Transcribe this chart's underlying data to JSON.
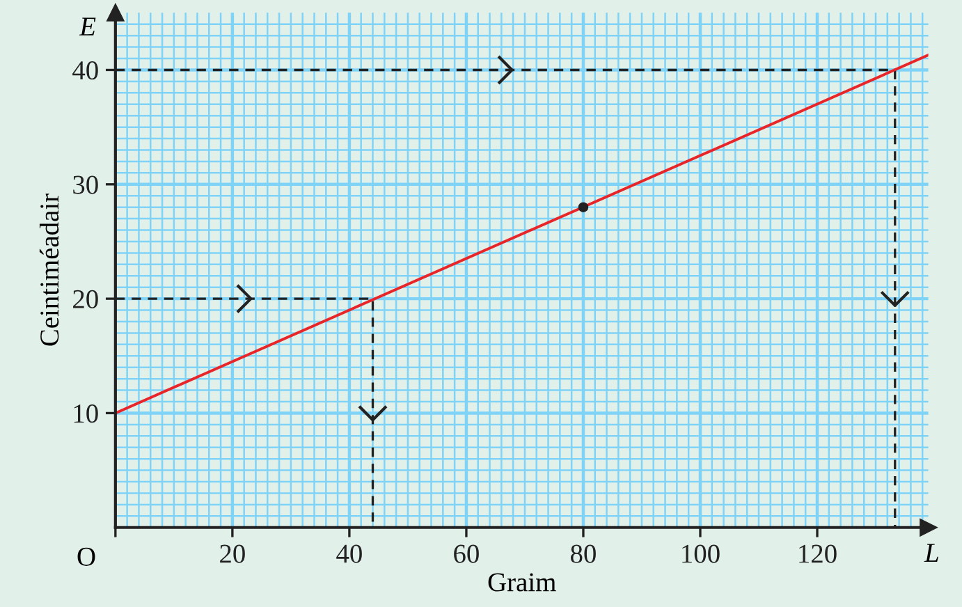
{
  "chart_data": {
    "type": "line",
    "xlabel": "Graim",
    "ylabel": "Ceintiméadair",
    "annotations": [
      "E",
      "O",
      "L"
    ],
    "xlim": [
      0,
      139
    ],
    "ylim": [
      0,
      45
    ],
    "xticks": [
      {
        "value": 0,
        "label": null
      },
      {
        "value": 2,
        "label": null
      },
      {
        "value": 4,
        "label": null
      },
      {
        "value": 6,
        "label": null
      },
      {
        "value": 8,
        "label": null
      },
      {
        "value": 10,
        "label": null
      },
      {
        "value": 12,
        "label": null
      },
      {
        "value": 14,
        "label": null
      },
      {
        "value": 16,
        "label": null
      },
      {
        "value": 18,
        "label": null
      },
      20,
      {
        "value": 22,
        "label": null
      },
      {
        "value": 24,
        "label": null
      },
      {
        "value": 26,
        "label": null
      },
      {
        "value": 28,
        "label": null
      },
      {
        "value": 30,
        "label": null
      },
      {
        "value": 32,
        "label": null
      },
      {
        "value": 34,
        "label": null
      },
      {
        "value": 36,
        "label": null
      },
      {
        "value": 38,
        "label": null
      },
      40,
      {
        "value": 42,
        "label": null
      },
      {
        "value": 44,
        "label": null
      },
      {
        "value": 46,
        "label": null
      },
      {
        "value": 48,
        "label": null
      },
      {
        "value": 50,
        "label": null
      },
      {
        "value": 52,
        "label": null
      },
      {
        "value": 54,
        "label": null
      },
      {
        "value": 56,
        "label": null
      },
      {
        "value": 58,
        "label": null
      },
      60,
      {
        "value": 62,
        "label": null
      },
      {
        "value": 64,
        "label": null
      },
      {
        "value": 66,
        "label": null
      },
      {
        "value": 68,
        "label": null
      },
      {
        "value": 70,
        "label": null
      },
      {
        "value": 72,
        "label": null
      },
      {
        "value": 74,
        "label": null
      },
      {
        "value": 76,
        "label": null
      },
      {
        "value": 78,
        "label": null
      },
      80,
      {
        "value": 82,
        "label": null
      },
      {
        "value": 84,
        "label": null
      },
      {
        "value": 86,
        "label": null
      },
      {
        "value": 88,
        "label": null
      },
      {
        "value": 90,
        "label": null
      },
      {
        "value": 92,
        "label": null
      },
      {
        "value": 94,
        "label": null
      },
      {
        "value": 96,
        "label": null
      },
      {
        "value": 98,
        "label": null
      },
      100,
      {
        "value": 102,
        "label": null
      },
      {
        "value": 104,
        "label": null
      },
      {
        "value": 106,
        "label": null
      },
      {
        "value": 108,
        "label": null
      },
      {
        "value": 110,
        "label": null
      },
      {
        "value": 112,
        "label": null
      },
      {
        "value": 114,
        "label": null
      },
      {
        "value": 116,
        "label": null
      },
      {
        "value": 118,
        "label": null
      },
      120,
      {
        "value": 122,
        "label": null
      },
      {
        "value": 124,
        "label": null
      },
      {
        "value": 126,
        "label": null
      },
      {
        "value": 128,
        "label": null
      },
      {
        "value": 130,
        "label": null
      },
      {
        "value": 132,
        "label": null
      },
      {
        "value": 134,
        "label": null
      },
      {
        "value": 136,
        "label": null
      },
      {
        "value": 138,
        "label": null
      }
    ],
    "yticks": [
      {
        "value": 1,
        "label": null
      },
      {
        "value": 2,
        "label": null
      },
      {
        "value": 3,
        "label": null
      },
      {
        "value": 4,
        "label": null
      },
      {
        "value": 5,
        "label": null
      },
      {
        "value": 6,
        "label": null
      },
      {
        "value": 7,
        "label": null
      },
      {
        "value": 8,
        "label": null
      },
      {
        "value": 9,
        "label": null
      },
      10,
      {
        "value": 11,
        "label": null
      },
      {
        "value": 12,
        "label": null
      },
      {
        "value": 13,
        "label": null
      },
      {
        "value": 14,
        "label": null
      },
      {
        "value": 15,
        "label": null
      },
      {
        "value": 16,
        "label": null
      },
      {
        "value": 17,
        "label": null
      },
      {
        "value": 18,
        "label": null
      },
      {
        "value": 19,
        "label": null
      },
      20,
      {
        "value": 21,
        "label": null
      },
      {
        "value": 22,
        "label": null
      },
      {
        "value": 23,
        "label": null
      },
      {
        "value": 24,
        "label": null
      },
      {
        "value": 25,
        "label": null
      },
      {
        "value": 26,
        "label": null
      },
      {
        "value": 27,
        "label": null
      },
      {
        "value": 28,
        "label": null
      },
      {
        "value": 29,
        "label": null
      },
      30,
      {
        "value": 31,
        "label": null
      },
      {
        "value": 32,
        "label": null
      },
      {
        "value": 33,
        "label": null
      },
      {
        "value": 34,
        "label": null
      },
      {
        "value": 35,
        "label": null
      },
      {
        "value": 36,
        "label": null
      },
      {
        "value": 37,
        "label": null
      },
      {
        "value": 38,
        "label": null
      },
      {
        "value": 39,
        "label": null
      },
      40,
      {
        "value": 41,
        "label": null
      },
      {
        "value": 42,
        "label": null
      },
      {
        "value": 43,
        "label": null
      },
      {
        "value": 44,
        "label": null
      }
    ],
    "grid": true,
    "series": [
      {
        "color": "#e8262a",
        "x": [
          0,
          139
        ],
        "values": [
          10,
          41.3
        ]
      },
      {
        "type": "scatter",
        "color": "#222222",
        "x": [
          80
        ],
        "values": [
          28
        ],
        "marker": "circle"
      },
      {
        "type": "line",
        "color": "#222222",
        "line_style": "dashed",
        "x": [
          0,
          44,
          44
        ],
        "values": [
          20,
          20,
          0
        ]
      },
      {
        "type": "line",
        "color": "#222222",
        "line_style": "dashed",
        "x": [
          0,
          133.3,
          133.3
        ],
        "values": [
          40,
          40,
          0
        ]
      }
    ]
  }
}
